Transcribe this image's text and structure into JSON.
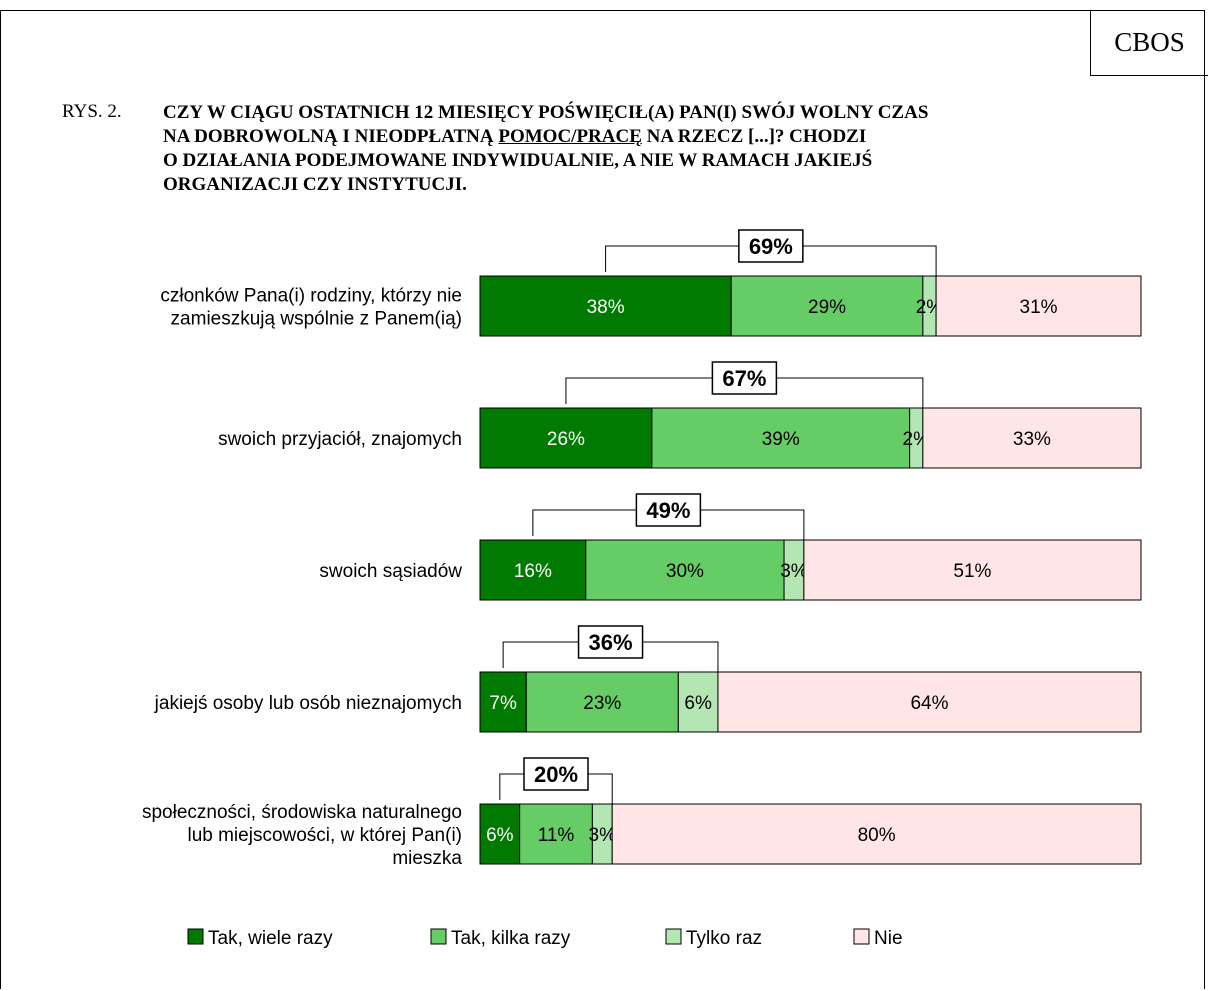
{
  "header": {
    "badge": "CBOS",
    "figure_number": "RYS. 2.",
    "title_parts": [
      "CZY W CIĄGU OSTATNICH 12 MIESIĘCY POŚWIĘCIŁ(A) PAN(I) SWÓJ WOLNY CZAS",
      "NA DOBROWOLNĄ I NIEODPŁATNĄ ",
      "POMOC/PRACĘ",
      " NA RZECZ [...]? CHODZI",
      "O DZIAŁANIA PODEJMOWANE INDYWIDUALNIE, A NIE W RAMACH JAKIEJŚ",
      "ORGANIZACJI CZY INSTYTUCJI."
    ]
  },
  "chart_data": {
    "type": "bar",
    "orientation": "horizontal",
    "stacked": true,
    "normalized_to": 100,
    "title": "",
    "xlabel": "",
    "ylabel": "",
    "xlim": [
      0,
      100
    ],
    "grid": false,
    "legend_position": "bottom",
    "categories": [
      [
        "członków Pana(i) rodziny, którzy nie",
        "zamieszkują wspólnie z Panem(ią)"
      ],
      [
        "swoich przyjaciół, znajomych"
      ],
      [
        "swoich sąsiadów"
      ],
      [
        "jakiejś osoby lub osób nieznajomych"
      ],
      [
        "społeczności, środowiska naturalnego",
        "lub miejscowości, w której Pan(i)",
        "mieszka"
      ]
    ],
    "series": [
      {
        "name": "Tak, wiele razy",
        "color": "#007a00",
        "label_color": "#ffffff",
        "values": [
          38,
          26,
          16,
          7,
          6
        ]
      },
      {
        "name": "Tak, kilka razy",
        "color": "#66cc66",
        "label_color": "#000000",
        "values": [
          29,
          39,
          30,
          23,
          11
        ]
      },
      {
        "name": "Tylko raz",
        "color": "#b3e6b3",
        "label_color": "#000000",
        "values": [
          2,
          2,
          3,
          6,
          3
        ]
      },
      {
        "name": "Nie",
        "color": "#ffe5e5",
        "label_color": "#000000",
        "values": [
          31,
          33,
          51,
          64,
          80
        ]
      }
    ],
    "value_suffix": "%",
    "totals": {
      "description": "sum of the three 'Tak' series shown in bracket box",
      "values": [
        69,
        67,
        49,
        36,
        20
      ]
    }
  }
}
